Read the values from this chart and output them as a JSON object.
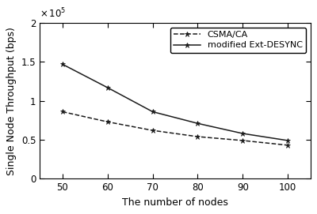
{
  "x": [
    50,
    60,
    70,
    80,
    90,
    100
  ],
  "csma_ca": [
    86000,
    73000,
    62000,
    54000,
    49000,
    43000
  ],
  "ext_desync": [
    147000,
    117000,
    86000,
    71000,
    58000,
    49000
  ],
  "xlabel": "The number of nodes",
  "ylabel": "Single Node Throughput (bps)",
  "xlim": [
    45,
    105
  ],
  "ylim": [
    0,
    200000
  ],
  "yticks": [
    0,
    50000,
    100000,
    150000,
    200000
  ],
  "ytick_labels": [
    "0",
    "0.5",
    "1",
    "1.5",
    "2"
  ],
  "legend_csma": "CSMA/CA",
  "legend_desync": "modified Ext-DESYNC",
  "line_color": "#1a1a1a",
  "bg_color": "#ffffff",
  "label_fontsize": 9,
  "tick_fontsize": 8.5,
  "legend_fontsize": 8
}
